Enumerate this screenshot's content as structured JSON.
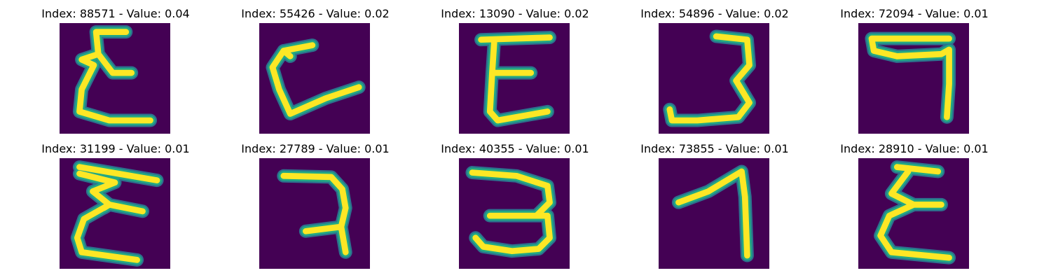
{
  "colors": {
    "background": "#440154",
    "stroke_core": "#fde725",
    "stroke_edge": "#22a884",
    "stroke_mid": "#2c728e"
  },
  "panels": [
    {
      "title": "Index: 88571 - Value: 0.04",
      "glyph": "epsilon-like character"
    },
    {
      "title": "Index: 55426 - Value: 0.02",
      "glyph": "L-like character with top hook"
    },
    {
      "title": "Index: 13090 - Value: 0.02",
      "glyph": "E-like character"
    },
    {
      "title": "Index: 54896 - Value: 0.02",
      "glyph": "3-like character"
    },
    {
      "title": "Index: 72094 - Value: 0.01",
      "glyph": "7-like character"
    },
    {
      "title": "Index: 31199 - Value: 0.01",
      "glyph": "epsilon-like character"
    },
    {
      "title": "Index: 27789 - Value: 0.01",
      "glyph": "curved 7-like character"
    },
    {
      "title": "Index: 40355 - Value: 0.01",
      "glyph": "3-like character"
    },
    {
      "title": "Index: 73855 - Value: 0.01",
      "glyph": "1-like character"
    },
    {
      "title": "Index: 28910 - Value: 0.01",
      "glyph": "epsilon-like character"
    }
  ]
}
